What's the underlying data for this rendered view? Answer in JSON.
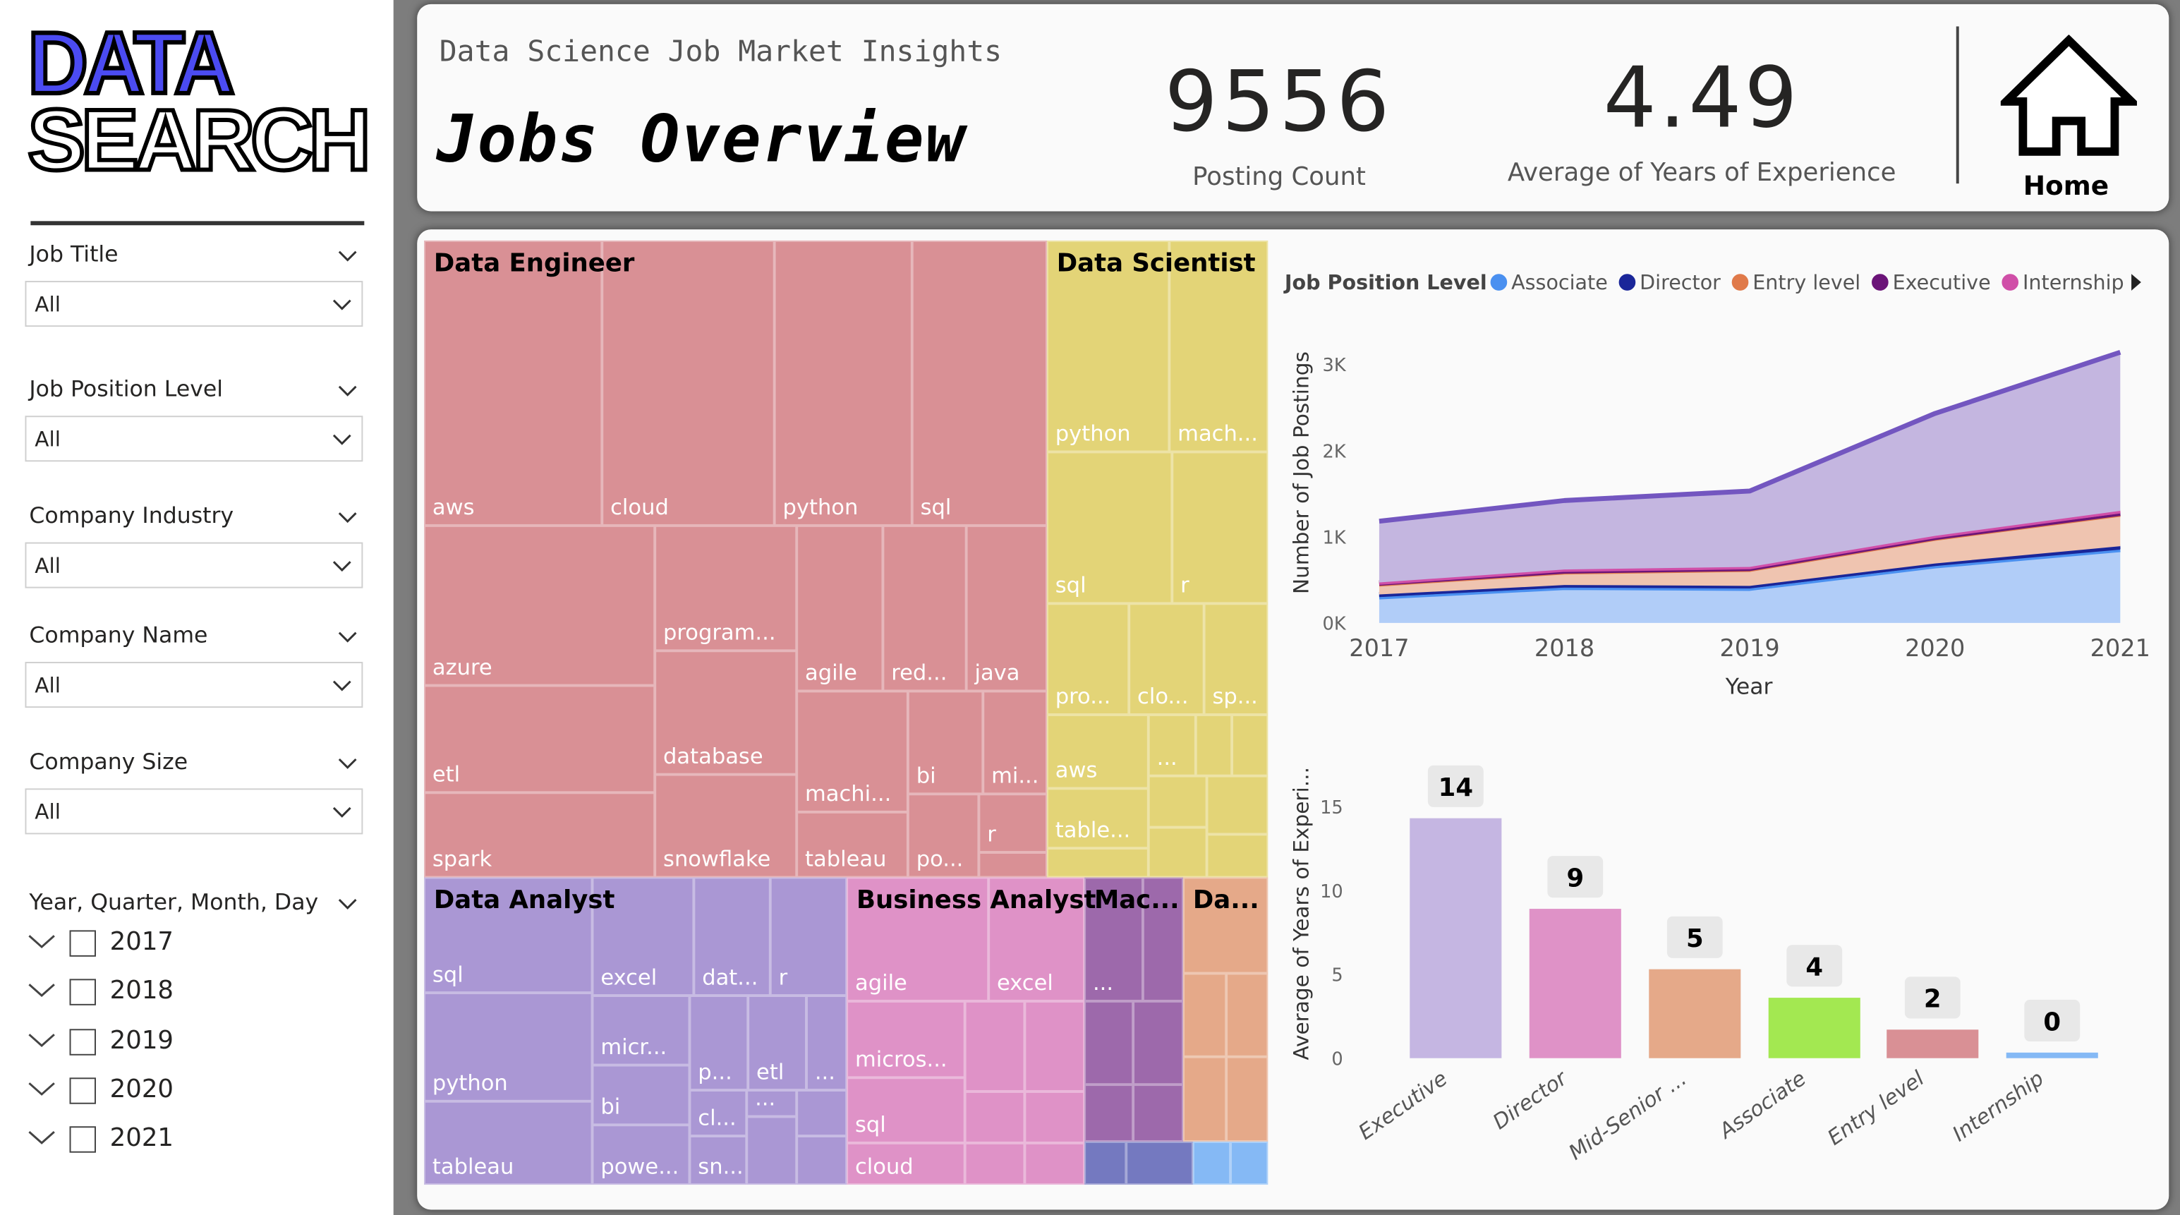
{
  "sidebar": {
    "logo": {
      "line1": "DATA",
      "line2": "SEARCH"
    },
    "filters": [
      {
        "label": "Job Title",
        "value": "All"
      },
      {
        "label": "Job Position Level",
        "value": "All"
      },
      {
        "label": "Company Industry",
        "value": "All"
      },
      {
        "label": "Company Name",
        "value": "All"
      },
      {
        "label": "Company Size",
        "value": "All"
      }
    ],
    "date_filter": {
      "label": "Year, Quarter, Month, Day",
      "years": [
        "2017",
        "2018",
        "2019",
        "2020",
        "2021"
      ]
    }
  },
  "header": {
    "subtitle": "Data Science Job Market Insights",
    "title": "Jobs Overview",
    "kpis": [
      {
        "value": "9556",
        "label": "Posting Count"
      },
      {
        "value": "4.49",
        "label": "Average of Years of Experience"
      }
    ],
    "home_label": "Home"
  },
  "treemap": {
    "groups": [
      {
        "name": "Data Engineer",
        "color": "#d99095",
        "tiles": [
          "aws",
          "cloud",
          "python",
          "sql",
          "azure",
          "etl",
          "spark",
          "program...",
          "database",
          "snowflake",
          "agile",
          "red...",
          "java",
          "machi...",
          "tableau",
          "bi",
          "mi...",
          "po...",
          "r"
        ]
      },
      {
        "name": "Data Scientist",
        "color": "#e3d477",
        "tiles": [
          "python",
          "mach...",
          "sql",
          "r",
          "pro...",
          "clo...",
          "sp...",
          "aws",
          "...",
          "table..."
        ]
      },
      {
        "name": "Data Analyst",
        "color": "#aa97d4",
        "tiles": [
          "sql",
          "python",
          "tableau",
          "excel",
          "dat...",
          "r",
          "micr...",
          "bi",
          "powe...",
          "p...",
          "etl",
          "...",
          "cl...",
          "...",
          "sn..."
        ]
      },
      {
        "name": "Business Analyst",
        "color": "#df92c7",
        "tiles": [
          "agile",
          "excel",
          "micros...",
          "sql",
          "cloud"
        ]
      },
      {
        "name": "Mac...",
        "color": "#9d69ab",
        "tiles": [
          "..."
        ]
      },
      {
        "name": "Da...",
        "color": "#e5a989",
        "tiles": []
      }
    ],
    "extra_colors": [
      "#7479c0",
      "#85b9f5"
    ]
  },
  "chart_data": [
    {
      "type": "area",
      "stacked": true,
      "legend_title": "Job Position Level",
      "legend_position": "top",
      "x": [
        2017,
        2018,
        2019,
        2020,
        2021
      ],
      "xlabel": "Year",
      "ylabel": "Number of Job Postings",
      "ylim": [
        0,
        3000
      ],
      "yticks": [
        "0K",
        "1K",
        "2K",
        "3K"
      ],
      "grid": false,
      "series": [
        {
          "name": "Associate",
          "color": "#4a90f0",
          "fill": "#b1cdf8",
          "values": [
            300,
            410,
            400,
            660,
            850
          ]
        },
        {
          "name": "Director",
          "color": "#1a2699",
          "fill": "#1a2699",
          "values": [
            30,
            30,
            30,
            30,
            40
          ]
        },
        {
          "name": "Entry level",
          "color": "#e07a4a",
          "fill": "#efc4b0",
          "values": [
            120,
            150,
            190,
            290,
            370
          ]
        },
        {
          "name": "Executive",
          "color": "#6b1478",
          "fill": "#6b1478",
          "values": [
            10,
            10,
            10,
            10,
            10
          ]
        },
        {
          "name": "Internship",
          "color": "#d04fa8",
          "fill": "#d04fa8",
          "values": [
            10,
            20,
            20,
            20,
            30
          ]
        },
        {
          "color": "#7356c0",
          "fill": "#c4b6e0",
          "values": [
            710,
            800,
            880,
            1420,
            1840
          ]
        }
      ]
    },
    {
      "type": "bar",
      "categories": [
        "Executive",
        "Director",
        "Mid-Senior ...",
        "Associate",
        "Entry level",
        "Internship"
      ],
      "values": [
        14.3,
        8.9,
        5.3,
        3.6,
        1.7,
        0.3
      ],
      "data_labels": [
        "14",
        "9",
        "5",
        "4",
        "2",
        "0"
      ],
      "colors": [
        "#c5b6e2",
        "#df92c7",
        "#e5a989",
        "#a3e851",
        "#d99095",
        "#85b9f5"
      ],
      "ylabel": "Average of Years of Experi...",
      "ylim": [
        0,
        15
      ],
      "yticks": [
        "0",
        "5",
        "10",
        "15"
      ],
      "grid": false
    }
  ]
}
